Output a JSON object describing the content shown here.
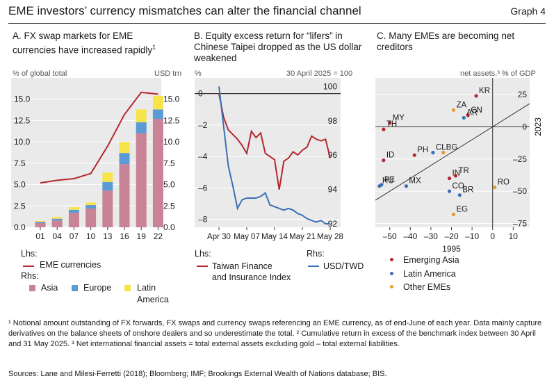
{
  "header": {
    "title": "EME investors’ currency mismatches can alter the financial channel",
    "graph_label": "Graph 4"
  },
  "colors": {
    "red": "#b5262c",
    "blue": "#3a6fb5",
    "orange": "#e69a2e",
    "asia": "#c98396",
    "europe": "#5b9bd5",
    "latam": "#f7e34a",
    "panel_bg": "#eaeaea",
    "grid": "#ffffff",
    "axis": "#333333"
  },
  "panels": {
    "a": {
      "title": "A. FX swap markets for EME currencies have increased rapidly",
      "sup": "1",
      "left_unit": "% of global total",
      "right_unit": "USD trn",
      "lhs_label": "Lhs:",
      "rhs_label": "Rhs:",
      "legend_line": "EME currencies",
      "legend_asia": "Asia",
      "legend_europe": "Europe",
      "legend_latam_1": "Latin",
      "legend_latam_2": "America"
    },
    "b": {
      "title": "B. Equity excess return for “lifers” in Chinese Taipei dropped as the US dollar weakened",
      "left_unit": "%",
      "right_unit": "30 April 2025 = 100",
      "lhs_label": "Lhs:",
      "rhs_label": "Rhs:",
      "legend_taiwan_1": "Taiwan Finance",
      "legend_taiwan_2": "and Insurance Index",
      "legend_usd": "USD/TWD"
    },
    "c": {
      "title": "C. Many EMEs are becoming net creditors",
      "unit": "net assets,³ % of GDP",
      "x_title": "1995",
      "y_title": "2023",
      "legend_asia": "Emerging Asia",
      "legend_latam": "Latin America",
      "legend_other": "Other EMEs"
    }
  },
  "chart_data": [
    {
      "type": "bar",
      "title": "A. FX swap markets for EME currencies have increased rapidly",
      "categories": [
        "01",
        "04",
        "07",
        "10",
        "13",
        "16",
        "19",
        "22"
      ],
      "stacked_series_rhs": [
        {
          "name": "Asia",
          "values": [
            0.5,
            0.8,
            1.7,
            2.2,
            4.3,
            7.4,
            11.0,
            12.7
          ]
        },
        {
          "name": "Europe",
          "values": [
            0.15,
            0.2,
            0.35,
            0.4,
            1.0,
            1.3,
            1.3,
            1.1
          ]
        },
        {
          "name": "Latin America",
          "values": [
            0.1,
            0.2,
            0.3,
            0.3,
            1.1,
            1.3,
            1.5,
            1.6
          ]
        }
      ],
      "line_series_lhs": {
        "name": "EME currencies",
        "values": [
          5.2,
          5.5,
          5.7,
          6.3,
          9.5,
          13.2,
          15.8,
          15.6
        ]
      },
      "ylim": [
        0,
        17.5
      ],
      "yticks": [
        "0.0",
        "2.5",
        "5.0",
        "7.5",
        "10.0",
        "12.5",
        "15.0"
      ]
    },
    {
      "type": "line",
      "title": "B. Equity excess return for “lifers” in Chinese Taipei dropped as the US dollar weakened",
      "x_tick_labels": [
        "Apr 30",
        "May 07",
        "May 14",
        "May 21",
        "May 28"
      ],
      "lhs_ticks": [
        "0",
        "–2",
        "–4",
        "–6",
        "–8"
      ],
      "rhs_ticks": [
        "100",
        "98",
        "96",
        "94",
        "92"
      ],
      "lhs_range": [
        -8.5,
        1.0
      ],
      "rhs_range": [
        91.8,
        100.5
      ],
      "series": [
        {
          "name": "Taiwan Finance and Insurance Index",
          "axis": "lhs",
          "values": [
            0.0,
            -1.5,
            -2.3,
            -2.6,
            -2.9,
            -3.3,
            -3.8,
            -2.4,
            -2.8,
            -2.5,
            -3.8,
            -4.0,
            -4.2,
            -6.1,
            -4.3,
            -4.1,
            -3.7,
            -3.9,
            -3.6,
            -3.4,
            -2.7,
            -2.9,
            -3.0,
            -2.9,
            -4.1
          ]
        },
        {
          "name": "USD/TWD",
          "axis": "rhs",
          "values": [
            100.0,
            97.7,
            95.4,
            94.2,
            92.9,
            93.4,
            93.5,
            93.5,
            93.5,
            93.6,
            93.8,
            93.1,
            93.0,
            92.9,
            92.8,
            92.9,
            92.8,
            92.6,
            92.5,
            92.3,
            92.2,
            92.1,
            92.2,
            92.0,
            92.0
          ]
        }
      ]
    },
    {
      "type": "scatter",
      "title": "C. Many EMEs are becoming net creditors",
      "xlabel": "1995",
      "ylabel": "2023",
      "xlim": [
        -57,
        18
      ],
      "ylim": [
        -78,
        38
      ],
      "xticks": [
        "–50",
        "–40",
        "–30",
        "–20",
        "–10",
        "0",
        "10"
      ],
      "yticks": [
        "25",
        "0",
        "–25",
        "–50",
        "–75"
      ],
      "points": [
        {
          "label": "KR",
          "group": "Emerging Asia",
          "x": -8,
          "y": 24
        },
        {
          "label": "CN",
          "group": "Emerging Asia",
          "x": -12,
          "y": 9
        },
        {
          "label": "MY",
          "group": "Emerging Asia",
          "x": -50,
          "y": 3
        },
        {
          "label": "TH",
          "group": "Emerging Asia",
          "x": -53,
          "y": -2
        },
        {
          "label": "PH",
          "group": "Emerging Asia",
          "x": -38,
          "y": -22
        },
        {
          "label": "ID",
          "group": "Emerging Asia",
          "x": -53,
          "y": -26
        },
        {
          "label": "IN",
          "group": "Emerging Asia",
          "x": -21,
          "y": -40
        },
        {
          "label": "TR",
          "group": "Emerging Asia",
          "x": -18,
          "y": -38
        },
        {
          "label": "AR",
          "group": "Latin America",
          "x": -14,
          "y": 7
        },
        {
          "label": "CL",
          "group": "Latin America",
          "x": -29,
          "y": -20
        },
        {
          "label": "PE",
          "group": "Latin America",
          "x": -54,
          "y": -45
        },
        {
          "label": "HU",
          "group": "Latin America",
          "x": -55,
          "y": -46
        },
        {
          "label": "MX",
          "group": "Latin America",
          "x": -42,
          "y": -46
        },
        {
          "label": "CO",
          "group": "Latin America",
          "x": -21,
          "y": -50
        },
        {
          "label": "BR",
          "group": "Latin America",
          "x": -16,
          "y": -53
        },
        {
          "label": "ZA",
          "group": "Other EMEs",
          "x": -19,
          "y": 13
        },
        {
          "label": "BG",
          "group": "Other EMEs",
          "x": -24,
          "y": -20
        },
        {
          "label": "RO",
          "group": "Other EMEs",
          "x": 1,
          "y": -47
        },
        {
          "label": "EG",
          "group": "Other EMEs",
          "x": -19,
          "y": -68
        }
      ]
    }
  ],
  "footnotes": {
    "text": "¹ Notional amount outstanding of FX forwards, FX swaps and currency swaps referencing an EME currency, as of end-June of each year. Data mainly capture derivatives on the balance sheets of onshore dealers and so underestimate the total. ² Cumulative return in excess of the benchmark index between 30 April and 31 May 2025. ³ Net international financial assets = total external assets excluding gold – total external liabilities.",
    "sources": "Sources: Lane and Milesi-Ferretti (2018); Bloomberg; IMF; Brookings External Wealth of Nations database; BIS."
  }
}
